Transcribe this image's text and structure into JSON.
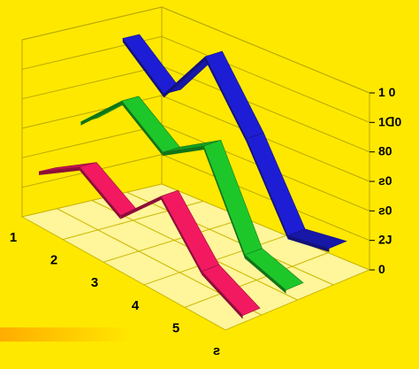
{
  "colors": {
    "background": "#ffe800",
    "floor": "#fff59a",
    "wall_lines": "#b8a800",
    "series": [
      "#ff1a66",
      "#1fd12c",
      "#1f1fe0"
    ]
  },
  "chart_data": {
    "type": "line",
    "style": "3d-ribbon",
    "x": [
      "1",
      "2",
      "3",
      "4",
      "5",
      "6"
    ],
    "x_tick_labels": [
      "1",
      "2",
      "3",
      "4",
      "5",
      "ƨ"
    ],
    "y_tick_labels": [
      "0",
      "2J",
      "ƨ0",
      "ƨ0",
      "80",
      "1ꓷ0",
      "1 0"
    ],
    "ylim": [
      0,
      120
    ],
    "series": [
      {
        "values": [
          28,
          46,
          28,
          56,
          20,
          5
        ]
      },
      {
        "values": [
          55,
          83,
          62,
          80,
          20,
          10
        ]
      },
      {
        "values": [
          105,
          80,
          118,
          75,
          22,
          26
        ]
      }
    ],
    "grid": true,
    "legend": "none"
  }
}
